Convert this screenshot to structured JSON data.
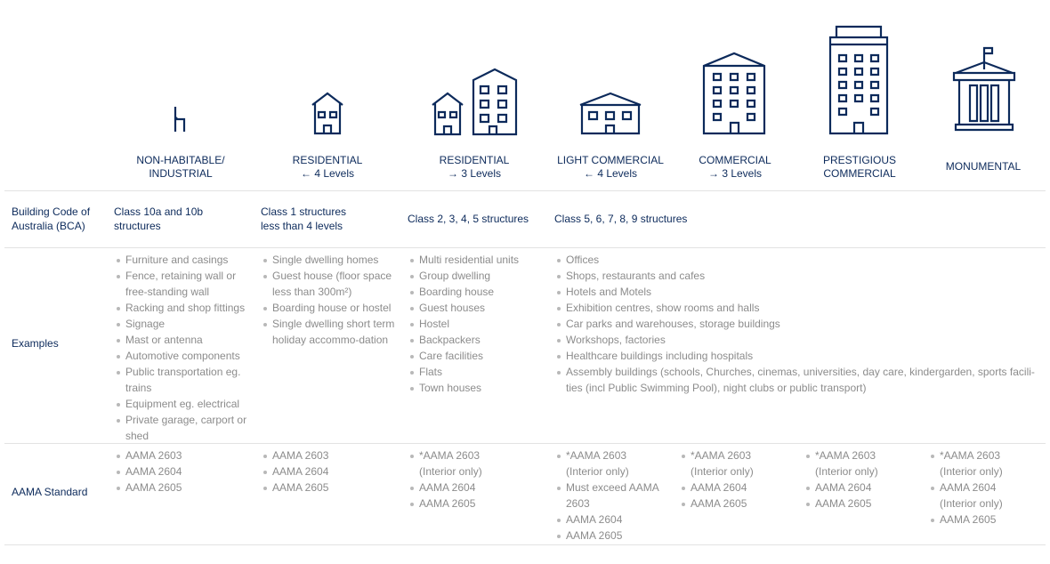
{
  "colors": {
    "primary": "#0c2a5b",
    "muted": "#8c8c8c",
    "divider": "#e3e3e3"
  },
  "columns": [
    {
      "icon": "chair-icon",
      "title": "NON-HABITABLE/",
      "subtitle": "INDUSTRIAL",
      "bca": "Class 10a and 10b structures",
      "examples": [
        "Furniture and casings",
        "Fence, retaining wall or free-standing wall",
        "Racking and shop fittings",
        "Signage",
        "Mast or antenna",
        "Automotive components",
        "Public transportation eg. trains",
        "Equipment eg. electrical",
        "Private garage, carport or shed"
      ],
      "aama": [
        "AAMA 2603",
        "AAMA 2604",
        "AAMA 2605"
      ]
    },
    {
      "icon": "house-icon",
      "title": "RESIDENTIAL",
      "subtitle": "← 4 Levels",
      "bca": "Class 1 structures less than 4 levels",
      "examples": [
        "Single dwelling homes",
        "Guest house (floor space less than 300m²)",
        "Boarding house or hostel",
        "Single dwelling short term holiday accommo-dation"
      ],
      "aama": [
        "AAMA 2603",
        "AAMA 2604",
        "AAMA 2605"
      ]
    },
    {
      "icon": "house-and-apartment-icon",
      "title": "RESIDENTIAL",
      "subtitle": "→ 3 Levels",
      "bca": "Class 2, 3, 4, 5 structures",
      "examples": [
        "Multi residential units",
        "Group dwelling",
        "Boarding house",
        "Guest houses",
        "Hostel",
        "Backpackers",
        "Care facilities",
        "Flats",
        "Town houses"
      ],
      "aama": [
        "*AAMA 2603 (Interior only)",
        "AAMA 2604",
        "AAMA 2605"
      ]
    },
    {
      "icon": "low-commercial-building-icon",
      "title": "LIGHT COMMERCIAL",
      "subtitle": "← 4 Levels",
      "bca": "Class 5, 6, 7, 8, 9 structures",
      "examples": [
        "Offices",
        "Shops, restaurants and cafes",
        "Hotels and Motels",
        "Exhibition centres, show rooms and halls",
        "Car parks and warehouses, storage buildings",
        "Workshops, factories",
        "Healthcare buildings including hospitals",
        "Assembly buildings (schools, Churches, cinemas, universities, day care, kindergarden, sports facili-ties (incl Public Swimming Pool), night clubs or public transport)"
      ],
      "aama": [
        "*AAMA 2603 (Interior only)",
        "Must exceed AAMA 2603",
        "AAMA 2604",
        "AAMA 2605"
      ]
    },
    {
      "icon": "office-building-icon",
      "title": "COMMERCIAL",
      "subtitle": "→ 3 Levels",
      "aama": [
        "*AAMA 2603 (Interior only)",
        "AAMA 2604",
        "AAMA 2605"
      ]
    },
    {
      "icon": "tower-building-icon",
      "title": "PRESTIGIOUS",
      "subtitle": "COMMERCIAL",
      "aama": [
        "*AAMA 2603 (Interior only)",
        "AAMA 2604",
        "AAMA 2605"
      ]
    },
    {
      "icon": "monument-building-icon",
      "title": "MONUMENTAL",
      "subtitle": "",
      "aama": [
        "*AAMA 2603 (Interior only)",
        "AAMA 2604 (Interior only)",
        "AAMA 2605"
      ]
    }
  ],
  "rows": {
    "bca": "Building Code of Australia (BCA)",
    "examples": "Examples",
    "aama": "AAMA Standard"
  }
}
